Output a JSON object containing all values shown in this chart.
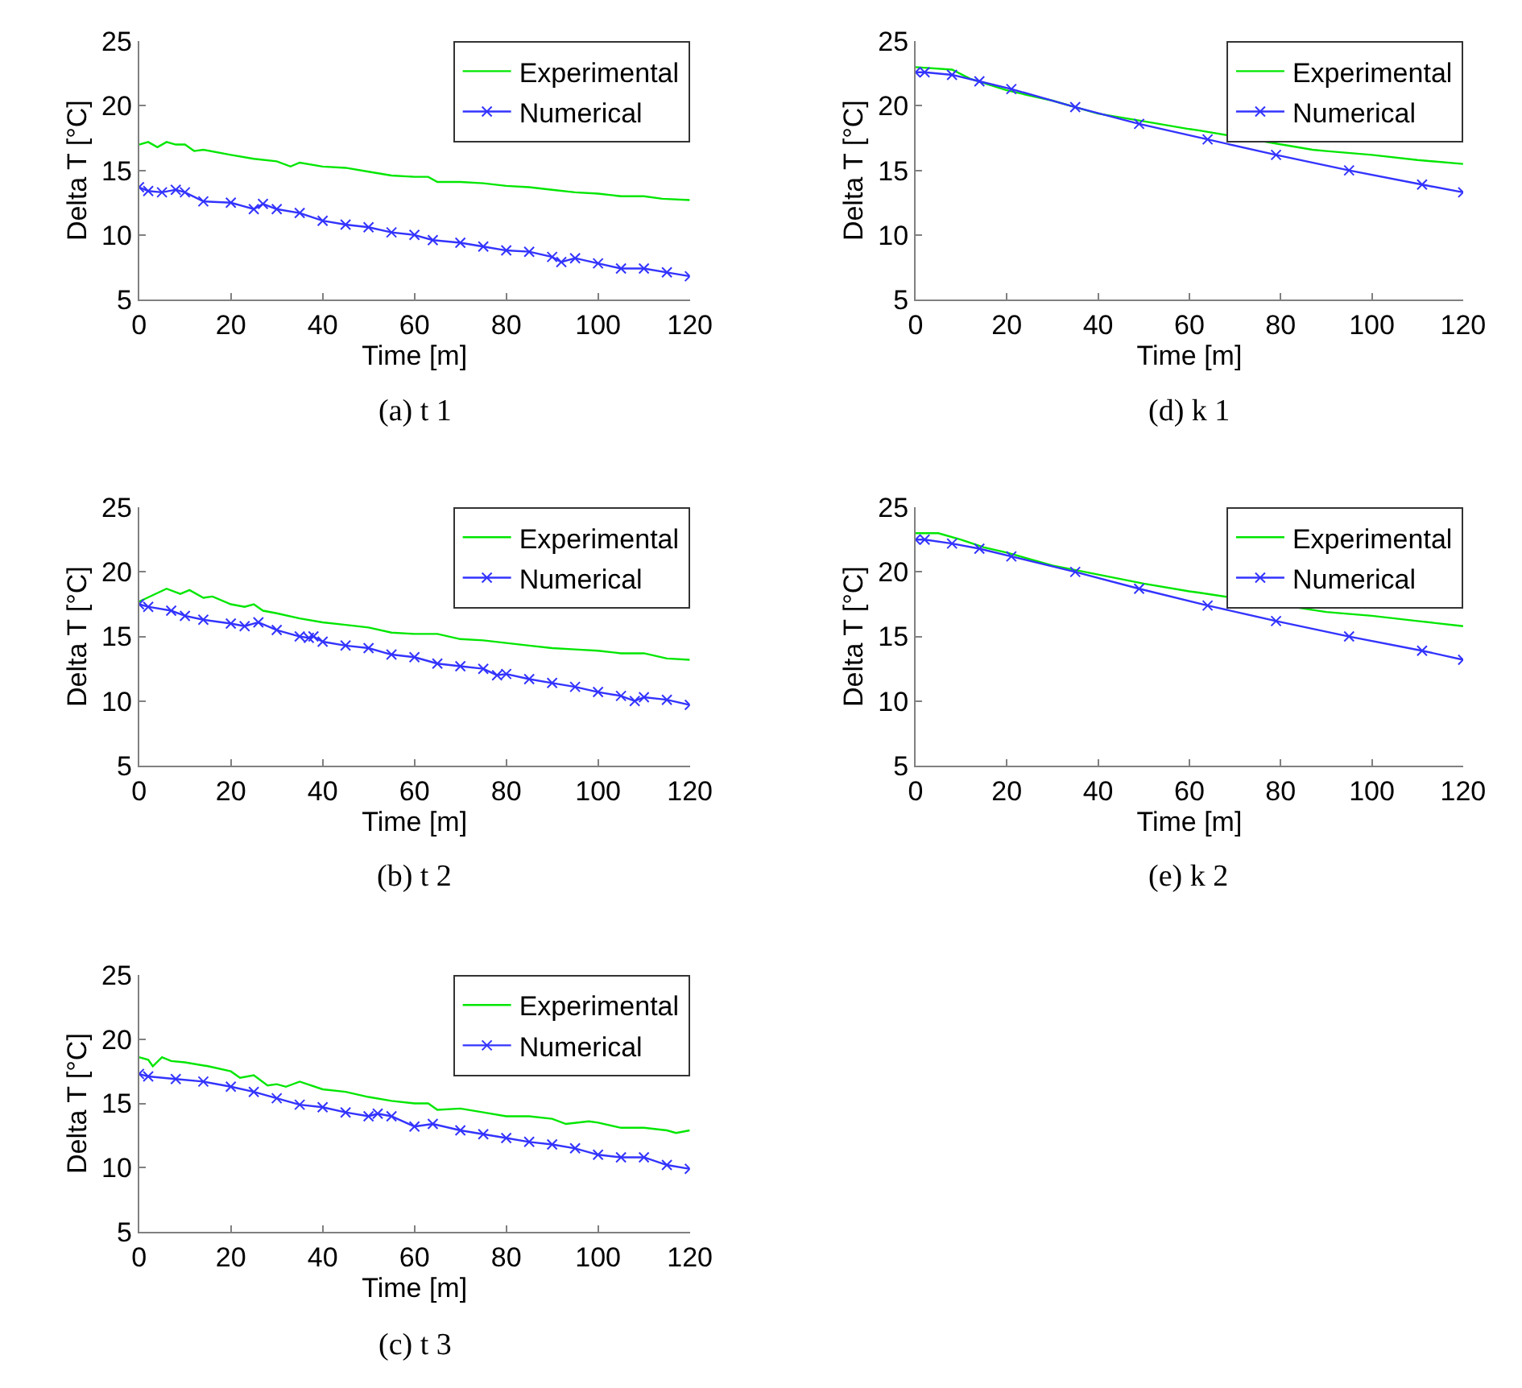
{
  "chart_data": [
    {
      "type": "line",
      "title": "(a) t 1",
      "xlabel": "Time [m]",
      "ylabel": "Delta T [°C]",
      "xlim": [
        0,
        120
      ],
      "ylim": [
        5,
        25
      ],
      "xticks": [
        0,
        20,
        40,
        60,
        80,
        100,
        120
      ],
      "yticks": [
        5,
        10,
        15,
        20,
        25
      ],
      "legend": "top right",
      "series": [
        {
          "name": "Experimental",
          "color": "#00e600",
          "marker": "none",
          "x": [
            0,
            2,
            4,
            6,
            8,
            10,
            12,
            14,
            20,
            25,
            30,
            33,
            35,
            40,
            45,
            50,
            55,
            60,
            63,
            65,
            70,
            75,
            80,
            85,
            90,
            95,
            100,
            105,
            110,
            114,
            120
          ],
          "values": [
            17.0,
            17.2,
            16.8,
            17.2,
            17.0,
            17.0,
            16.5,
            16.6,
            16.2,
            15.9,
            15.7,
            15.3,
            15.6,
            15.3,
            15.2,
            14.9,
            14.6,
            14.5,
            14.5,
            14.1,
            14.1,
            14.0,
            13.8,
            13.7,
            13.5,
            13.3,
            13.2,
            13.0,
            13.0,
            12.8,
            12.7
          ]
        },
        {
          "name": "Numerical",
          "color": "#3333ff",
          "marker": "cross",
          "x": [
            0,
            2,
            5,
            8,
            10,
            14,
            20,
            25,
            27,
            30,
            35,
            40,
            45,
            50,
            55,
            60,
            64,
            70,
            75,
            80,
            85,
            90,
            92,
            95,
            100,
            105,
            110,
            115,
            120
          ],
          "values": [
            13.7,
            13.4,
            13.3,
            13.5,
            13.3,
            12.6,
            12.5,
            12.0,
            12.4,
            12.0,
            11.7,
            11.1,
            10.8,
            10.6,
            10.2,
            10.0,
            9.6,
            9.4,
            9.1,
            8.8,
            8.7,
            8.3,
            7.9,
            8.2,
            7.8,
            7.4,
            7.4,
            7.1,
            6.8
          ]
        }
      ]
    },
    {
      "type": "line",
      "title": "(d) k 1",
      "xlabel": "Time [m]",
      "ylabel": "Delta T [°C]",
      "xlim": [
        0,
        120
      ],
      "ylim": [
        5,
        25
      ],
      "xticks": [
        0,
        20,
        40,
        60,
        80,
        100,
        120
      ],
      "yticks": [
        5,
        10,
        15,
        20,
        25
      ],
      "legend": "top right",
      "series": [
        {
          "name": "Experimental",
          "color": "#00e600",
          "marker": "none",
          "x": [
            0,
            8,
            12,
            20,
            30,
            40,
            50,
            60,
            62,
            87,
            90,
            100,
            110,
            120
          ],
          "values": [
            23.0,
            22.8,
            22.1,
            21.2,
            20.4,
            19.4,
            18.8,
            18.2,
            18.1,
            16.6,
            16.5,
            16.2,
            15.8,
            15.5
          ]
        },
        {
          "name": "Numerical",
          "color": "#3333ff",
          "marker": "cross",
          "x": [
            0,
            2,
            8,
            14,
            21,
            35,
            49,
            64,
            79,
            95,
            111,
            120
          ],
          "values": [
            22.6,
            22.6,
            22.4,
            21.9,
            21.3,
            19.9,
            18.6,
            17.4,
            16.2,
            15.0,
            13.9,
            13.3
          ]
        }
      ]
    },
    {
      "type": "line",
      "title": "(b) t 2",
      "xlabel": "Time [m]",
      "ylabel": "Delta T [°C]",
      "xlim": [
        0,
        120
      ],
      "ylim": [
        5,
        25
      ],
      "xticks": [
        0,
        20,
        40,
        60,
        80,
        100,
        120
      ],
      "yticks": [
        5,
        10,
        15,
        20,
        25
      ],
      "legend": "top right",
      "series": [
        {
          "name": "Experimental",
          "color": "#00e600",
          "marker": "none",
          "x": [
            0,
            3,
            6,
            9,
            11,
            14,
            16,
            20,
            23,
            25,
            27,
            30,
            35,
            40,
            45,
            50,
            55,
            60,
            65,
            70,
            75,
            80,
            85,
            90,
            95,
            100,
            105,
            110,
            115,
            120
          ],
          "values": [
            17.7,
            18.2,
            18.7,
            18.3,
            18.6,
            18.0,
            18.1,
            17.5,
            17.3,
            17.5,
            17.0,
            16.8,
            16.4,
            16.1,
            15.9,
            15.7,
            15.3,
            15.2,
            15.2,
            14.8,
            14.7,
            14.5,
            14.3,
            14.1,
            14.0,
            13.9,
            13.7,
            13.7,
            13.3,
            13.2
          ]
        },
        {
          "name": "Numerical",
          "color": "#3333ff",
          "marker": "cross",
          "x": [
            0,
            2,
            7,
            10,
            14,
            20,
            23,
            26,
            30,
            35,
            37,
            38,
            40,
            45,
            50,
            55,
            60,
            65,
            70,
            75,
            78,
            80,
            85,
            90,
            95,
            100,
            105,
            108,
            110,
            115,
            120
          ],
          "values": [
            17.5,
            17.3,
            17.0,
            16.6,
            16.3,
            16.0,
            15.8,
            16.1,
            15.5,
            15.0,
            14.9,
            15.0,
            14.6,
            14.3,
            14.1,
            13.6,
            13.4,
            12.9,
            12.7,
            12.5,
            12.0,
            12.1,
            11.7,
            11.4,
            11.1,
            10.7,
            10.4,
            10.0,
            10.3,
            10.1,
            9.7
          ]
        }
      ]
    },
    {
      "type": "line",
      "title": "(e) k 2",
      "xlabel": "Time [m]",
      "ylabel": "Delta T [°C]",
      "xlim": [
        0,
        120
      ],
      "ylim": [
        5,
        25
      ],
      "xticks": [
        0,
        20,
        40,
        60,
        80,
        100,
        120
      ],
      "yticks": [
        5,
        10,
        15,
        20,
        25
      ],
      "legend": "top right",
      "series": [
        {
          "name": "Experimental",
          "color": "#00e600",
          "marker": "none",
          "x": [
            0,
            5,
            10,
            15,
            20,
            30,
            40,
            50,
            60,
            62,
            90,
            100,
            110,
            120
          ],
          "values": [
            23.0,
            23.0,
            22.5,
            21.9,
            21.5,
            20.5,
            19.8,
            19.1,
            18.5,
            18.4,
            16.9,
            16.6,
            16.2,
            15.8
          ]
        },
        {
          "name": "Numerical",
          "color": "#3333ff",
          "marker": "cross",
          "x": [
            0,
            2,
            8,
            14,
            21,
            35,
            49,
            64,
            79,
            95,
            111,
            120
          ],
          "values": [
            22.5,
            22.5,
            22.2,
            21.8,
            21.2,
            20.0,
            18.7,
            17.4,
            16.2,
            15.0,
            13.9,
            13.2
          ]
        }
      ]
    },
    {
      "type": "line",
      "title": "(c) t 3",
      "xlabel": "Time [m]",
      "ylabel": "Delta T [°C]",
      "xlim": [
        0,
        120
      ],
      "ylim": [
        5,
        25
      ],
      "xticks": [
        0,
        20,
        40,
        60,
        80,
        100,
        120
      ],
      "yticks": [
        5,
        10,
        15,
        20,
        25
      ],
      "legend": "top right",
      "series": [
        {
          "name": "Experimental",
          "color": "#00e600",
          "marker": "none",
          "x": [
            0,
            2,
            3,
            5,
            7,
            10,
            15,
            20,
            22,
            25,
            28,
            30,
            32,
            35,
            40,
            45,
            50,
            55,
            60,
            63,
            65,
            70,
            75,
            80,
            85,
            90,
            93,
            98,
            100,
            105,
            110,
            115,
            117,
            120
          ],
          "values": [
            18.6,
            18.4,
            17.9,
            18.6,
            18.3,
            18.2,
            17.9,
            17.5,
            17.0,
            17.2,
            16.4,
            16.5,
            16.3,
            16.7,
            16.1,
            15.9,
            15.5,
            15.2,
            15.0,
            15.0,
            14.5,
            14.6,
            14.3,
            14.0,
            14.0,
            13.8,
            13.4,
            13.6,
            13.5,
            13.1,
            13.1,
            12.9,
            12.7,
            12.9
          ]
        },
        {
          "name": "Numerical",
          "color": "#3333ff",
          "marker": "cross",
          "x": [
            0,
            2,
            8,
            14,
            20,
            25,
            30,
            35,
            40,
            45,
            50,
            52,
            55,
            60,
            64,
            70,
            75,
            80,
            85,
            90,
            95,
            100,
            105,
            110,
            115,
            120
          ],
          "values": [
            17.3,
            17.1,
            16.9,
            16.7,
            16.3,
            15.9,
            15.4,
            14.9,
            14.7,
            14.3,
            14.0,
            14.2,
            14.0,
            13.2,
            13.4,
            12.9,
            12.6,
            12.3,
            12.0,
            11.8,
            11.5,
            11.0,
            10.8,
            10.8,
            10.2,
            9.9
          ]
        }
      ]
    }
  ]
}
